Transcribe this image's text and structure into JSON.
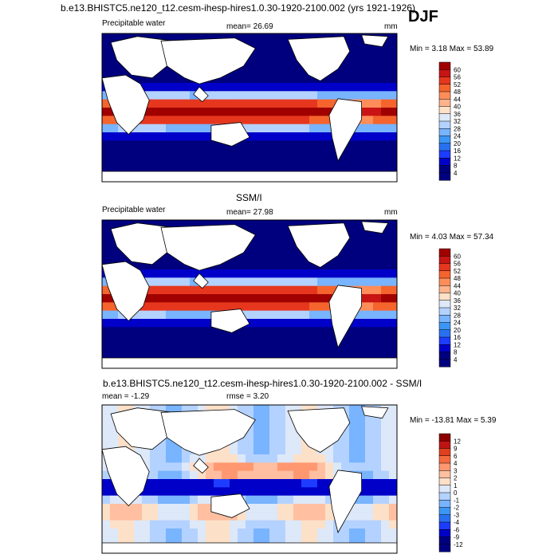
{
  "colors": {
    "abs": [
      "#00007f",
      "#0000c8",
      "#1e3cff",
      "#2870f0",
      "#3c96f5",
      "#78b4ff",
      "#b4d2ff",
      "#dde8f8",
      "#fde0c8",
      "#ffb38c",
      "#ff8d5a",
      "#f5642d",
      "#e6371e",
      "#c81414",
      "#a00000"
    ],
    "diff": [
      "#00007f",
      "#0000c8",
      "#1e3cff",
      "#2870f0",
      "#3c96f5",
      "#78b4ff",
      "#b4d2ff",
      "#dde8f8",
      "#fde0c8",
      "#ffbfa0",
      "#ff9870",
      "#f56a40",
      "#e0401e",
      "#c01414",
      "#8c0000"
    ],
    "land": "#ffffff",
    "coast": "#000000"
  },
  "chart_data": [
    {
      "type": "heatmap",
      "panel": "model",
      "super_title": "b.e13.BHISTC5.ne120_t12.cesm-ihesp-hires1.0.30-1920-2100.002 (yrs 1921-1926)",
      "season": "DJF",
      "title_left": "Precipitable water",
      "mean_text": "mean=  26.69",
      "units": "mm",
      "minmax_text": "Min =   3.18 Max =  53.89",
      "min": 3.18,
      "max": 53.89,
      "mean": 26.69,
      "colorbar_levels": [
        "60",
        "56",
        "52",
        "48",
        "44",
        "40",
        "36",
        "32",
        "28",
        "24",
        "20",
        "16",
        "12",
        "8",
        "4"
      ]
    },
    {
      "type": "heatmap",
      "panel": "obs",
      "center_title": "SSM/I",
      "title_left": "Precipitable water",
      "mean_text": "mean=  27.98",
      "units": "mm",
      "minmax_text": "Min =   4.03 Max =  57.34",
      "min": 4.03,
      "max": 57.34,
      "mean": 27.98,
      "colorbar_levels": [
        "60",
        "56",
        "52",
        "48",
        "44",
        "40",
        "36",
        "32",
        "28",
        "24",
        "20",
        "16",
        "12",
        "8",
        "4"
      ]
    },
    {
      "type": "heatmap",
      "panel": "diff",
      "center_title": "b.e13.BHISTC5.ne120_t12.cesm-ihesp-hires1.0.30-1920-2100.002 - SSM/I",
      "mean_text": "mean =  -1.29",
      "rmse_text": "rmse =   3.20",
      "minmax_text": "Min = -13.81 Max =   5.39",
      "min": -13.81,
      "max": 5.39,
      "mean": -1.29,
      "rmse": 3.2,
      "colorbar_levels": [
        "12",
        "9",
        "6",
        "4",
        "3",
        "2",
        "1",
        "0",
        "-1",
        "-2",
        "-3",
        "-4",
        "-6",
        "-9",
        "-12"
      ]
    }
  ]
}
